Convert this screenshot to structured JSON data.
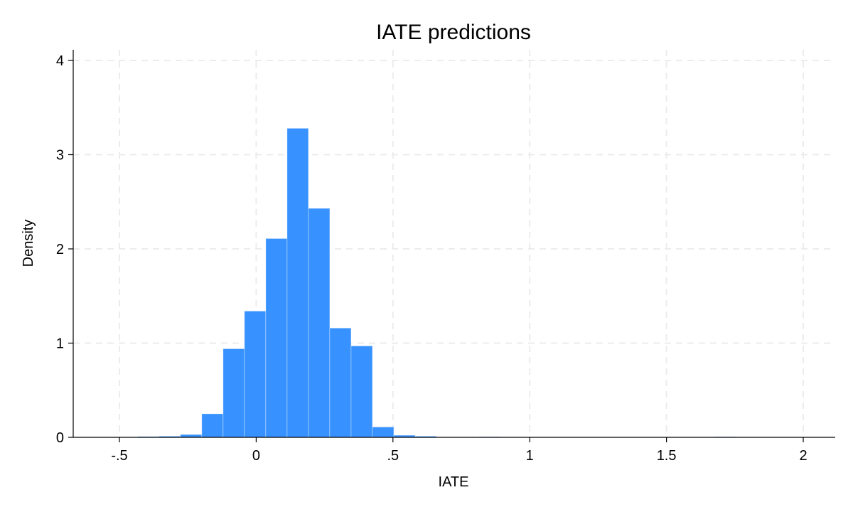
{
  "chart_data": {
    "type": "bar",
    "title": "IATE predictions",
    "xlabel": "IATE",
    "ylabel": "Density",
    "xlim": [
      -0.672,
      2.11
    ],
    "ylim": [
      0,
      4.1
    ],
    "x_ticks": [
      -0.5,
      0,
      0.5,
      1,
      1.5,
      2
    ],
    "x_tick_labels": [
      "-.5",
      "0",
      ".5",
      "1",
      "1.5",
      "2"
    ],
    "y_ticks": [
      0,
      1,
      2,
      3,
      4
    ],
    "y_tick_labels": [
      "0",
      "1",
      "2",
      "3",
      "4"
    ],
    "grid": true,
    "bar_color": "#3792ff",
    "bins": [
      {
        "x0": -0.433,
        "x1": -0.355,
        "density": 0.008
      },
      {
        "x0": -0.355,
        "x1": -0.277,
        "density": 0.012
      },
      {
        "x0": -0.277,
        "x1": -0.199,
        "density": 0.03
      },
      {
        "x0": -0.199,
        "x1": -0.121,
        "density": 0.25
      },
      {
        "x0": -0.121,
        "x1": -0.043,
        "density": 0.94
      },
      {
        "x0": -0.043,
        "x1": 0.035,
        "density": 1.34
      },
      {
        "x0": 0.035,
        "x1": 0.113,
        "density": 2.11
      },
      {
        "x0": 0.113,
        "x1": 0.191,
        "density": 3.28
      },
      {
        "x0": 0.191,
        "x1": 0.269,
        "density": 2.43
      },
      {
        "x0": 0.269,
        "x1": 0.347,
        "density": 1.16
      },
      {
        "x0": 0.347,
        "x1": 0.425,
        "density": 0.97
      },
      {
        "x0": 0.425,
        "x1": 0.503,
        "density": 0.11
      },
      {
        "x0": 0.503,
        "x1": 0.581,
        "density": 0.022
      },
      {
        "x0": 0.581,
        "x1": 0.659,
        "density": 0.012
      },
      {
        "x0": 0.815,
        "x1": 0.893,
        "density": 0.006
      },
      {
        "x0": 1.673,
        "x1": 1.751,
        "density": 0.006
      }
    ]
  }
}
